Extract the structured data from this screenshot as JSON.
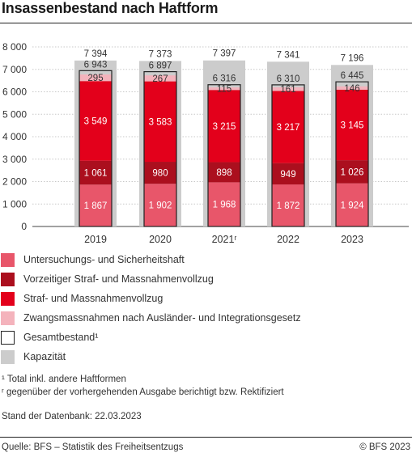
{
  "title": "Insassenbestand nach Haftform",
  "chart_data": {
    "type": "bar",
    "stacked": true,
    "categories": [
      "2019",
      "2020",
      "2021ʳ",
      "2022",
      "2023"
    ],
    "ylim": [
      0,
      8000
    ],
    "yticks": [
      0,
      1000,
      2000,
      3000,
      4000,
      5000,
      6000,
      7000,
      8000
    ],
    "ytick_labels": [
      "0",
      "1 000",
      "2 000",
      "3 000",
      "4 000",
      "5 000",
      "6 000",
      "7 000",
      "8 000"
    ],
    "grid": true,
    "series": [
      {
        "name": "Untersuchungs- und Sicherheitshaft",
        "color": "#e8566a",
        "values": [
          1867,
          1902,
          1968,
          1872,
          1924
        ],
        "labels": [
          "1 867",
          "1 902",
          "1 968",
          "1 872",
          "1 924"
        ]
      },
      {
        "name": "Vorzeitiger Straf- und Massnahmenvollzug",
        "color": "#ab0f1e",
        "values": [
          1061,
          980,
          898,
          949,
          1026
        ],
        "labels": [
          "1 061",
          "980",
          "898",
          "949",
          "1 026"
        ]
      },
      {
        "name": "Straf- und Massnahmenvollzug",
        "color": "#e3001b",
        "values": [
          3549,
          3583,
          3215,
          3217,
          3145
        ],
        "labels": [
          "3 549",
          "3 583",
          "3 215",
          "3 217",
          "3 145"
        ]
      },
      {
        "name": "Zwangsmassnahmen nach Ausländer- und Integrationsgesetz",
        "color": "#f4b3bc",
        "values": [
          295,
          267,
          115,
          161,
          146
        ],
        "labels": [
          "295",
          "267",
          "115",
          "161",
          "146"
        ]
      }
    ],
    "total": {
      "name": "Gesamtbestand¹",
      "values": [
        6943,
        6897,
        6316,
        6310,
        6445
      ],
      "labels": [
        "6 943",
        "6 897",
        "6 316",
        "6 310",
        "6 445"
      ]
    },
    "capacity": {
      "name": "Kapazität",
      "color": "#cccccc",
      "values": [
        7394,
        7373,
        7397,
        7341,
        7196
      ],
      "labels": [
        "7 394",
        "7 373",
        "7 397",
        "7 341",
        "7 196"
      ]
    }
  },
  "legend": [
    {
      "label": "Untersuchungs- und Sicherheitshaft",
      "color": "#e8566a",
      "outline": false
    },
    {
      "label": "Vorzeitiger Straf- und Massnahmenvollzug",
      "color": "#ab0f1e",
      "outline": false
    },
    {
      "label": "Straf- und Massnahmenvollzug",
      "color": "#e3001b",
      "outline": false
    },
    {
      "label": "Zwangsmassnahmen nach Ausländer- und Integrationsgesetz",
      "color": "#f4b3bc",
      "outline": false
    },
    {
      "label": "Gesamtbestand¹",
      "color": "#ffffff",
      "outline": true
    },
    {
      "label": "Kapazität",
      "color": "#cccccc",
      "outline": false
    }
  ],
  "notes": {
    "note1": "¹ Total inkl. andere Haftformen",
    "note2": "ʳ gegenüber der vorhergehenden Ausgabe berichtigt bzw. Rektifiziert",
    "data_date": "Stand der Datenbank: 22.03.2023"
  },
  "footer": {
    "source": "Quelle: BFS – Statistik des Freiheitsentzugs",
    "copyright": "© BFS 2023"
  }
}
